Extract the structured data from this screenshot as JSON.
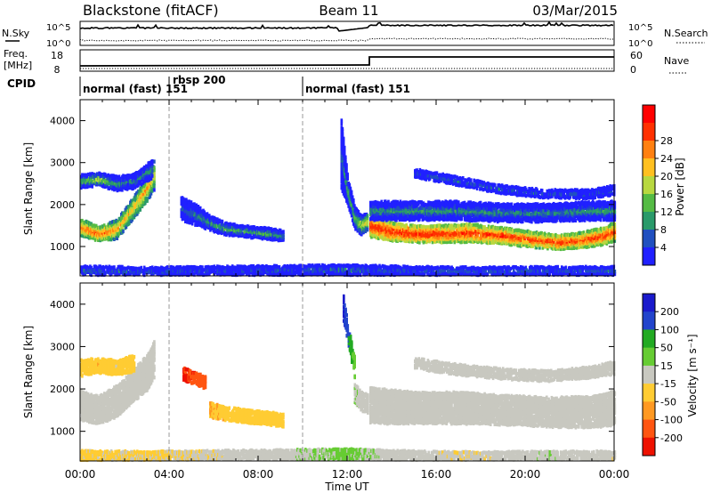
{
  "header": {
    "station": "Blackstone (fitACF)",
    "beam": "Beam 11",
    "date": "03/Mar/2015"
  },
  "noise_panel": {
    "left_label": "N.Sky",
    "right_label": "N.Search",
    "left_ticks": [
      "10^5",
      "10^0"
    ],
    "right_ticks": [
      "10^5",
      "10^0"
    ]
  },
  "freq_panel": {
    "left_label": "Freq.",
    "left_unit": "[MHz]",
    "right_label": "Nave",
    "left_ticks": [
      "18",
      "8"
    ],
    "right_ticks": [
      "60",
      "0"
    ]
  },
  "cpid": {
    "label": "CPID",
    "segments": [
      "normal (fast) 151",
      "rbsp 200",
      "normal (fast) 151"
    ]
  },
  "colors": {
    "power": [
      "#2020ff",
      "#2050c0",
      "#2a9a6a",
      "#55bb44",
      "#b8d840",
      "#ffc020",
      "#ff8010",
      "#ff3000",
      "#ff0000"
    ],
    "velocity": [
      "#1a1acc",
      "#2244cc",
      "#22aa22",
      "#66cc33",
      "#c8c8c0",
      "#ffcc33",
      "#ff9922",
      "#ff5511",
      "#ee1100"
    ]
  },
  "chart_data": [
    {
      "type": "heatmap",
      "name": "power",
      "ylabel": "Slant Range [km]",
      "yticks": [
        "1000",
        "2000",
        "3000",
        "4000"
      ],
      "ylim": [
        300,
        4500
      ],
      "xlim": [
        0,
        24
      ],
      "colorbar": {
        "label": "Power [dB]",
        "ticks": [
          "4",
          "8",
          "12",
          "16",
          "20",
          "24",
          "28"
        ],
        "range": [
          0,
          32
        ]
      },
      "bands": [
        {
          "x": [
            0.0,
            0.8,
            1.6,
            2.2,
            3.0,
            3.3
          ],
          "y": [
            1450,
            1300,
            1400,
            1800,
            2400,
            2700
          ],
          "w": [
            350,
            300,
            400,
            450,
            550,
            650
          ],
          "v": [
            24,
            26,
            22,
            20,
            22,
            18
          ]
        },
        {
          "x": [
            0.0,
            0.8,
            1.6,
            2.4,
            3.2
          ],
          "y": [
            2550,
            2600,
            2500,
            2550,
            2850
          ],
          "w": [
            300,
            250,
            300,
            300,
            400
          ],
          "v": [
            12,
            16,
            10,
            8,
            10
          ]
        },
        {
          "x": [
            4.5,
            5.2,
            5.8,
            6.5,
            7.5,
            8.5,
            9.1
          ],
          "y": [
            1900,
            1750,
            1550,
            1420,
            1350,
            1300,
            1250
          ],
          "w": [
            500,
            450,
            300,
            240,
            220,
            220,
            200
          ],
          "v": [
            6,
            8,
            10,
            12,
            12,
            12,
            10
          ]
        },
        {
          "x": [
            11.7,
            12.0,
            12.3,
            12.6,
            12.9
          ],
          "y": [
            3200,
            2300,
            1700,
            1500,
            1600
          ],
          "w": [
            1600,
            600,
            500,
            400,
            400
          ],
          "v": [
            6,
            10,
            12,
            16,
            18
          ]
        },
        {
          "x": [
            13.0,
            14.0,
            15.0,
            16.5,
            17.5,
            19.0,
            20.5,
            21.5,
            22.5,
            23.5,
            24.0
          ],
          "y": [
            1500,
            1350,
            1300,
            1300,
            1320,
            1250,
            1150,
            1100,
            1150,
            1250,
            1350
          ],
          "w": [
            500,
            380,
            360,
            360,
            380,
            340,
            320,
            300,
            320,
            360,
            400
          ],
          "v": [
            28,
            29,
            29,
            28,
            28,
            28,
            27,
            28,
            27,
            28,
            26
          ]
        },
        {
          "x": [
            13.0,
            15.0,
            17.0,
            19.0,
            21.0,
            23.0,
            24.0
          ],
          "y": [
            1850,
            1850,
            1850,
            1800,
            1800,
            1850,
            1850
          ],
          "w": [
            400,
            400,
            400,
            380,
            380,
            400,
            400
          ],
          "v": [
            10,
            10,
            10,
            9,
            9,
            10,
            10
          ]
        },
        {
          "x": [
            15.0,
            17.0,
            19.0,
            21.0,
            23.0,
            24.0
          ],
          "y": [
            2750,
            2550,
            2350,
            2250,
            2250,
            2350
          ],
          "w": [
            160,
            150,
            150,
            150,
            160,
            180
          ],
          "v": [
            6,
            6,
            6,
            5,
            5,
            6
          ]
        },
        {
          "x": [
            0.0,
            3.0,
            6.0,
            9.0,
            12.0,
            15.0,
            18.0,
            21.0,
            24.0
          ],
          "y": [
            420,
            400,
            420,
            430,
            440,
            420,
            410,
            420,
            420
          ],
          "w": [
            180,
            160,
            160,
            180,
            200,
            160,
            140,
            150,
            150
          ],
          "v": [
            8,
            7,
            6,
            7,
            9,
            6,
            6,
            6,
            7
          ]
        }
      ]
    },
    {
      "type": "heatmap",
      "name": "velocity",
      "ylabel": "Slant Range [km]",
      "yticks": [
        "1000",
        "2000",
        "3000",
        "4000"
      ],
      "ylim": [
        300,
        4500
      ],
      "xlim": [
        0,
        24
      ],
      "xlabel": "Time UT",
      "xticks": [
        "00:00",
        "04:00",
        "08:00",
        "12:00",
        "16:00",
        "20:00",
        "00:00"
      ],
      "colorbar": {
        "label": "Velocity [m s⁻¹]",
        "ticks": [
          "200",
          "100",
          "50",
          "15",
          "-15",
          "-50",
          "-100",
          "-200"
        ],
        "range": [
          -250,
          250
        ]
      },
      "bands": [
        {
          "x": [
            0.0,
            0.8,
            1.6,
            2.2,
            3.0,
            3.3
          ],
          "y": [
            1600,
            1500,
            1700,
            2000,
            2400,
            2700
          ],
          "w": [
            650,
            600,
            700,
            700,
            800,
            800
          ],
          "v": [
            0,
            0,
            5,
            -5,
            0,
            -10
          ]
        },
        {
          "x": [
            0.0,
            0.8,
            1.6,
            2.4
          ],
          "y": [
            2500,
            2550,
            2500,
            2600
          ],
          "w": [
            350,
            300,
            300,
            350
          ],
          "v": [
            -60,
            -70,
            -40,
            -60
          ]
        },
        {
          "x": [
            4.6,
            5.1,
            5.6
          ],
          "y": [
            2350,
            2250,
            2150
          ],
          "w": [
            250,
            250,
            250
          ],
          "v": [
            -200,
            -180,
            -150
          ]
        },
        {
          "x": [
            5.8,
            6.5,
            7.5,
            8.5,
            9.1
          ],
          "y": [
            1500,
            1420,
            1350,
            1300,
            1250
          ],
          "w": [
            300,
            280,
            260,
            260,
            240
          ],
          "v": [
            -80,
            -70,
            -60,
            -40,
            -50
          ]
        },
        {
          "x": [
            11.8,
            12.0,
            12.3
          ],
          "y": [
            3900,
            3300,
            2500
          ],
          "w": [
            600,
            400,
            500
          ],
          "v": [
            200,
            150,
            60
          ]
        },
        {
          "x": [
            12.3,
            12.6,
            12.9
          ],
          "y": [
            1900,
            1700,
            1650
          ],
          "w": [
            400,
            400,
            400
          ],
          "v": [
            30,
            0,
            -5
          ]
        },
        {
          "x": [
            13.0,
            15.0,
            17.0,
            19.0,
            21.0,
            23.0,
            24.0
          ],
          "y": [
            1600,
            1550,
            1550,
            1500,
            1450,
            1450,
            1550
          ],
          "w": [
            800,
            700,
            700,
            650,
            650,
            700,
            750
          ],
          "v": [
            0,
            0,
            5,
            0,
            0,
            -5,
            0
          ]
        },
        {
          "x": [
            15.0,
            17.0,
            19.0,
            21.0,
            23.0,
            24.0
          ],
          "y": [
            2600,
            2450,
            2350,
            2300,
            2400,
            2500
          ],
          "w": [
            200,
            200,
            200,
            200,
            220,
            250
          ],
          "v": [
            -5,
            -5,
            0,
            0,
            -5,
            -10
          ]
        },
        {
          "x": [
            0.0,
            3.0,
            6.0,
            9.0,
            12.0,
            15.0,
            18.0,
            21.0,
            24.0
          ],
          "y": [
            430,
            420,
            440,
            450,
            460,
            430,
            420,
            430,
            430
          ],
          "w": [
            180,
            160,
            160,
            180,
            200,
            160,
            140,
            150,
            150
          ],
          "v": [
            -40,
            -30,
            -20,
            10,
            40,
            -10,
            -20,
            20,
            -20
          ]
        }
      ]
    }
  ]
}
